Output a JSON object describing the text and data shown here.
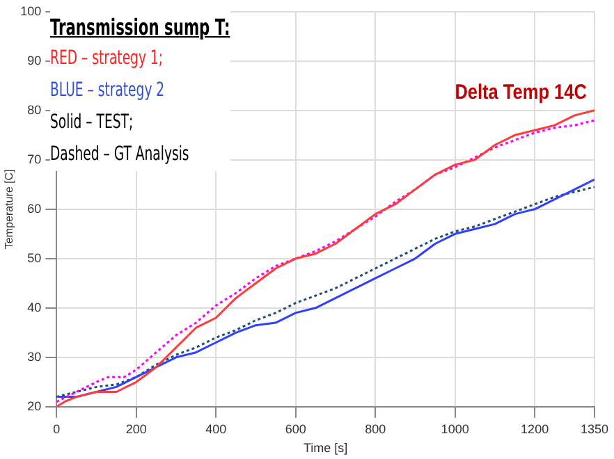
{
  "chart_data": {
    "type": "line",
    "xlabel": "Time [s]",
    "ylabel": "Temperature [C]",
    "annotations": [
      "Transmission sump T:",
      "RED – strategy 1;",
      "BLUE – strategy 2",
      "Solid – TEST;",
      "Dashed – GT Analysis",
      "Delta Temp 14C"
    ],
    "xlim": [
      0,
      1350
    ],
    "xticks": [
      0,
      200,
      400,
      600,
      800,
      1000,
      1200,
      1350
    ],
    "ylim": [
      20,
      100
    ],
    "yticks": [
      20,
      30,
      40,
      50,
      60,
      70,
      80,
      90,
      100
    ],
    "grid": true,
    "marker": "none",
    "series": [
      {
        "color": "#ff3b3b",
        "line_style": "solid",
        "x": [
          0,
          20,
          50,
          100,
          150,
          200,
          250,
          300,
          350,
          400,
          450,
          500,
          550,
          600,
          650,
          700,
          750,
          800,
          850,
          900,
          950,
          1000,
          1050,
          1100,
          1150,
          1200,
          1250,
          1300,
          1350
        ],
        "values": [
          20,
          21,
          22,
          23,
          23,
          25,
          28,
          32,
          36,
          38,
          42,
          45,
          48,
          50,
          51,
          53,
          56,
          59,
          61,
          64,
          67,
          69,
          70,
          73,
          75,
          76,
          77,
          79,
          80
        ]
      },
      {
        "color": "#ff00ff",
        "line_style": "dotted",
        "x": [
          0,
          50,
          100,
          130,
          170,
          200,
          250,
          300,
          350,
          400,
          450,
          500,
          550,
          600,
          650,
          700,
          750,
          800,
          850,
          900,
          950,
          1000,
          1050,
          1100,
          1150,
          1200,
          1250,
          1300,
          1350
        ],
        "values": [
          21,
          23,
          25,
          26,
          26,
          27.5,
          31,
          34.5,
          37,
          40.5,
          43,
          46,
          48.5,
          50,
          51.5,
          53.5,
          56,
          58.5,
          61.5,
          64,
          67,
          68.5,
          70.5,
          72.5,
          74,
          75.5,
          76.5,
          77,
          78
        ]
      },
      {
        "color": "#3040ff",
        "line_style": "solid",
        "x": [
          0,
          50,
          100,
          150,
          200,
          250,
          300,
          350,
          400,
          450,
          500,
          550,
          600,
          650,
          700,
          750,
          800,
          850,
          900,
          950,
          1000,
          1050,
          1100,
          1150,
          1200,
          1250,
          1300,
          1350
        ],
        "values": [
          22,
          22,
          23,
          24,
          26,
          28,
          30,
          31,
          33,
          35,
          36.5,
          37,
          39,
          40,
          42,
          44,
          46,
          48,
          50,
          53,
          55,
          56,
          57,
          59,
          60,
          62,
          64,
          66
        ]
      },
      {
        "color": "#1f4e79",
        "line_style": "dotted",
        "x": [
          0,
          100,
          150,
          200,
          250,
          300,
          350,
          400,
          450,
          500,
          550,
          600,
          650,
          700,
          750,
          800,
          850,
          900,
          950,
          1000,
          1050,
          1100,
          1150,
          1200,
          1250,
          1300,
          1350
        ],
        "values": [
          22,
          24,
          24.5,
          26,
          28.5,
          30.5,
          32,
          34,
          35.5,
          37.5,
          39,
          41,
          42.5,
          44,
          46,
          48,
          50,
          52,
          54,
          55.5,
          56.5,
          58,
          59.5,
          61,
          62.5,
          63.5,
          64.5
        ]
      }
    ]
  }
}
